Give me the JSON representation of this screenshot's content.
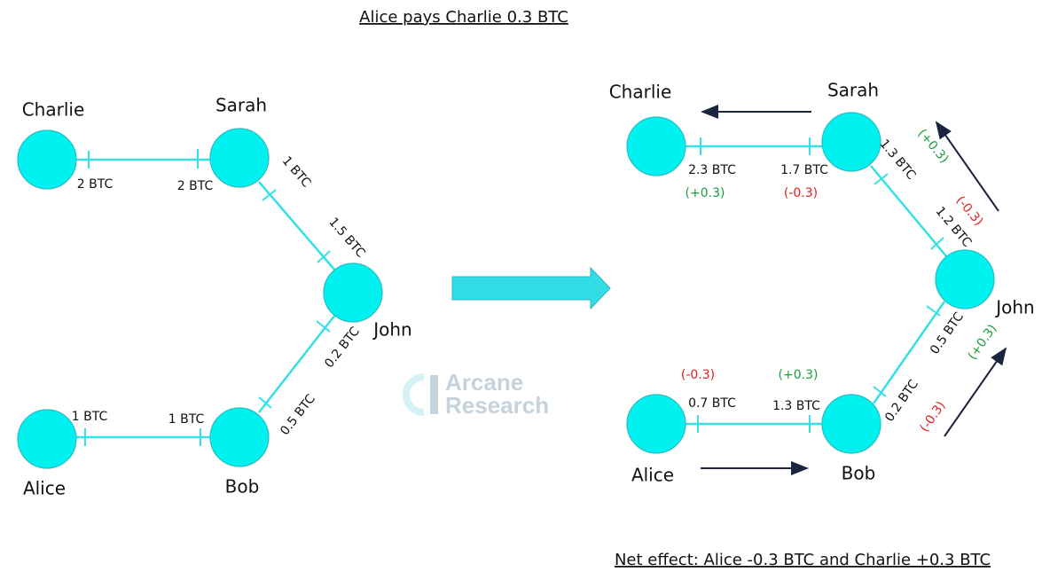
{
  "title": "Alice pays Charlie 0.3 BTC",
  "footer": "Net effect: Alice -0.3 BTC and Charlie +0.3 BTC",
  "watermark": [
    "Arcane",
    "Research"
  ],
  "before": {
    "nodes": [
      "Charlie",
      "Sarah",
      "John",
      "Alice",
      "Bob"
    ],
    "channel_labels": [
      "2 BTC",
      "2 BTC",
      "1 BTC",
      "1.5 BTC",
      "0.2 BTC",
      "0.5 BTC",
      "1 BTC",
      "1 BTC"
    ]
  },
  "after": {
    "nodes": [
      "Charlie",
      "Sarah",
      "John",
      "Alice",
      "Bob"
    ],
    "channel_labels": [
      "2.3 BTC",
      "1.7 BTC",
      "1.3 BTC",
      "1.2 BTC",
      "0.5 BTC",
      "0.2 BTC",
      "0.7 BTC",
      "1.3 BTC"
    ],
    "changes": [
      "(+0.3)",
      "(-0.3)",
      "(+0.3)",
      "(-0.3)",
      "(+0.3)",
      "(-0.3)",
      "(-0.3)",
      "(+0.3)"
    ]
  }
}
